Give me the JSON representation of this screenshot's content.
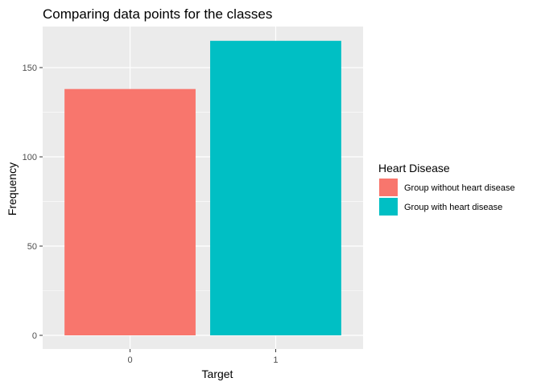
{
  "chart_data": {
    "type": "bar",
    "title": "Comparing data points for the classes",
    "xlabel": "Target",
    "ylabel": "Frequency",
    "categories": [
      "0",
      "1"
    ],
    "values": [
      138,
      165
    ],
    "ylim": [
      0,
      173
    ],
    "yticks": [
      0,
      50,
      100,
      150
    ],
    "grid": true,
    "legend": {
      "title": "Heart Disease",
      "position": "right",
      "entries": [
        {
          "label": "Group without heart disease",
          "color": "#F8766D"
        },
        {
          "label": "Group with heart disease",
          "color": "#00BFC4"
        }
      ]
    },
    "colors": [
      "#F8766D",
      "#00BFC4"
    ],
    "panel_background": "#EBEBEB",
    "grid_color": "#FFFFFF"
  }
}
